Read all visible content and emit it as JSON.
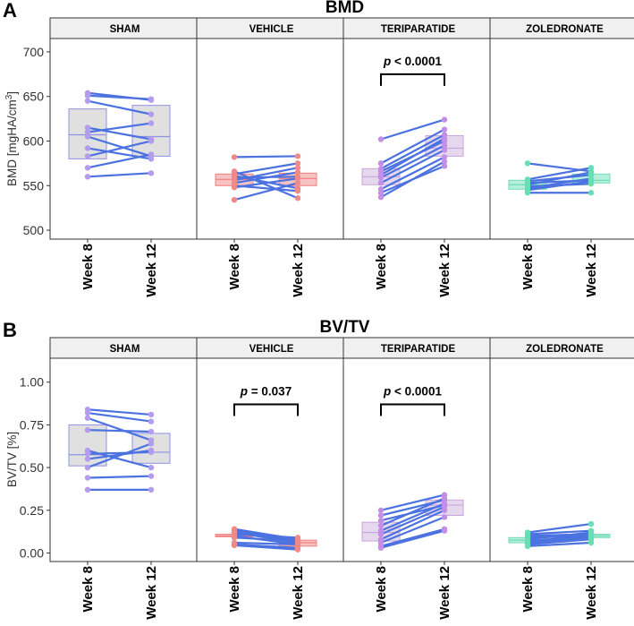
{
  "colors": {
    "line": "#4b72e0",
    "strip_fill": "#f0f0f0",
    "sham_box": "#e0e0e0",
    "sham_border": "#9090e8",
    "sham_point": "#b39cf0",
    "vehicle_box": "#f6c2c2",
    "vehicle_border": "#f08080",
    "vehicle_point": "#f08a8a",
    "teri_box": "#e6d8ec",
    "teri_border": "#c9a4dc",
    "teri_point": "#c28ee8",
    "zol_box": "#b4f0dc",
    "zol_border": "#6fdcb4",
    "zol_point": "#63e0b8"
  },
  "chart_data": [
    {
      "type": "paired-box",
      "panel_letter": "A",
      "title": "BMD",
      "ylabel": "BMD [mgHA/cm",
      "ylabel_sup": "3",
      "ylabel_close": "]",
      "ylim": [
        490,
        715
      ],
      "yticks": [
        500,
        550,
        600,
        650,
        700
      ],
      "ytick_labels": [
        "500",
        "550",
        "600",
        "650",
        "700"
      ],
      "x_categories": [
        "Week 8",
        "Week 12"
      ],
      "facets": [
        {
          "label": "SHAM",
          "group": "sham",
          "pairs": [
            [
              654,
              646
            ],
            [
              651,
              647
            ],
            [
              645,
              630
            ],
            [
              615,
              602
            ],
            [
              610,
              620
            ],
            [
              605,
              583
            ],
            [
              592,
              580
            ],
            [
              583,
              600
            ],
            [
              570,
              585
            ],
            [
              560,
              564
            ]
          ],
          "box8": {
            "q1": 580,
            "med": 607,
            "q3": 636
          },
          "box12": {
            "q1": 583,
            "med": 605,
            "q3": 640
          },
          "pval": null
        },
        {
          "label": "VEHICLE",
          "group": "vehicle",
          "pairs": [
            [
              582,
              583
            ],
            [
              566,
              536
            ],
            [
              563,
              575
            ],
            [
              561,
              547
            ],
            [
              559,
              560
            ],
            [
              556,
              570
            ],
            [
              553,
              565
            ],
            [
              550,
              544
            ],
            [
              548,
              558
            ],
            [
              534,
              553
            ]
          ],
          "box8": {
            "q1": 550,
            "med": 557,
            "q3": 563
          },
          "box12": {
            "q1": 550,
            "med": 558,
            "q3": 564
          },
          "pval": null
        },
        {
          "label": "TERIPARATIDE",
          "group": "teri",
          "pairs": [
            [
              602,
              624
            ],
            [
              575,
              613
            ],
            [
              569,
              607
            ],
            [
              566,
              600
            ],
            [
              562,
              603
            ],
            [
              559,
              595
            ],
            [
              553,
              590
            ],
            [
              546,
              582
            ],
            [
              542,
              572
            ],
            [
              537,
              577
            ]
          ],
          "box8": {
            "q1": 551,
            "med": 560,
            "q3": 569
          },
          "box12": {
            "q1": 583,
            "med": 592,
            "q3": 606
          },
          "pval": {
            "text": " < 0.0001",
            "y": 675
          }
        },
        {
          "label": "ZOLEDRONATE",
          "group": "zol",
          "pairs": [
            [
              575,
              566
            ],
            [
              557,
              570
            ],
            [
              555,
              562
            ],
            [
              553,
              556
            ],
            [
              551,
              565
            ],
            [
              549,
              552
            ],
            [
              547,
              558
            ],
            [
              545,
              555
            ],
            [
              542,
              542
            ]
          ],
          "box8": {
            "q1": 546,
            "med": 551,
            "q3": 556
          },
          "box12": {
            "q1": 553,
            "med": 556,
            "q3": 563
          },
          "pval": null
        }
      ]
    },
    {
      "type": "paired-box",
      "panel_letter": "B",
      "title": "BV/TV",
      "ylabel": "BV/TV [%]",
      "ylabel_sup": "",
      "ylabel_close": "",
      "ylim": [
        -0.05,
        1.14
      ],
      "yticks": [
        0,
        0.25,
        0.5,
        0.75,
        1.0
      ],
      "ytick_labels": [
        "0.00",
        "0.25",
        "0.50",
        "0.75",
        "1.00"
      ],
      "x_categories": [
        "Week 8",
        "Week 12"
      ],
      "facets": [
        {
          "label": "SHAM",
          "group": "sham",
          "pairs": [
            [
              0.84,
              0.81
            ],
            [
              0.82,
              0.77
            ],
            [
              0.79,
              0.66
            ],
            [
              0.72,
              0.71
            ],
            [
              0.6,
              0.5
            ],
            [
              0.58,
              0.59
            ],
            [
              0.55,
              0.6
            ],
            [
              0.5,
              0.64
            ],
            [
              0.44,
              0.45
            ],
            [
              0.37,
              0.37
            ]
          ],
          "box8": {
            "q1": 0.51,
            "med": 0.575,
            "q3": 0.75
          },
          "box12": {
            "q1": 0.525,
            "med": 0.59,
            "q3": 0.7
          },
          "pval": null
        },
        {
          "label": "VEHICLE",
          "group": "vehicle",
          "pairs": [
            [
              0.14,
              0.08
            ],
            [
              0.13,
              0.07
            ],
            [
              0.12,
              0.06
            ],
            [
              0.11,
              0.09
            ],
            [
              0.1,
              0.05
            ],
            [
              0.09,
              0.07
            ],
            [
              0.06,
              0.05
            ],
            [
              0.05,
              0.03
            ],
            [
              0.045,
              0.02
            ]
          ],
          "box8": {
            "q1": 0.095,
            "med": 0.1,
            "q3": 0.11
          },
          "box12": {
            "q1": 0.04,
            "med": 0.06,
            "q3": 0.075
          },
          "pval": {
            "text": " = 0.037",
            "y": 0.87
          }
        },
        {
          "label": "TERIPARATIDE",
          "group": "teri",
          "pairs": [
            [
              0.25,
              0.34
            ],
            [
              0.22,
              0.31
            ],
            [
              0.19,
              0.28
            ],
            [
              0.16,
              0.32
            ],
            [
              0.13,
              0.29
            ],
            [
              0.11,
              0.27
            ],
            [
              0.08,
              0.25
            ],
            [
              0.06,
              0.21
            ],
            [
              0.04,
              0.14
            ],
            [
              0.03,
              0.13
            ]
          ],
          "box8": {
            "q1": 0.07,
            "med": 0.12,
            "q3": 0.18
          },
          "box12": {
            "q1": 0.22,
            "med": 0.28,
            "q3": 0.31
          },
          "pval": {
            "text": " < 0.0001",
            "y": 0.87
          }
        },
        {
          "label": "ZOLEDRONATE",
          "group": "zol",
          "pairs": [
            [
              0.12,
              0.17
            ],
            [
              0.11,
              0.13
            ],
            [
              0.1,
              0.11
            ],
            [
              0.09,
              0.1
            ],
            [
              0.08,
              0.12
            ],
            [
              0.07,
              0.1
            ],
            [
              0.06,
              0.09
            ],
            [
              0.05,
              0.08
            ],
            [
              0.04,
              0.06
            ]
          ],
          "box8": {
            "q1": 0.06,
            "med": 0.075,
            "q3": 0.09
          },
          "box12": {
            "q1": 0.09,
            "med": 0.1,
            "q3": 0.11
          },
          "pval": null
        }
      ]
    }
  ]
}
